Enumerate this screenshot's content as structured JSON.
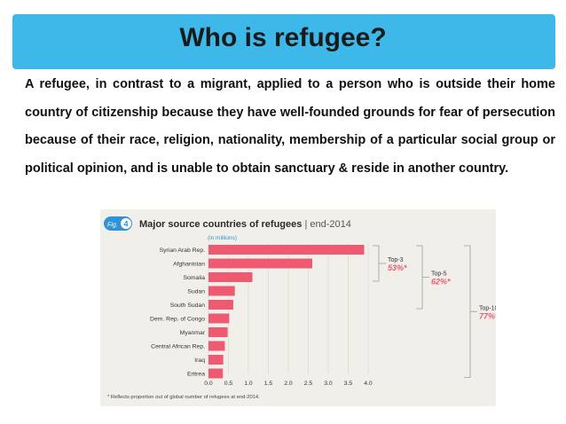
{
  "slide": {
    "title": "Who is refugee?",
    "body": "A refugee, in contrast to a migrant, applied to a person who is outside their home country of citizenship because they have well-founded grounds for fear of persecution because of their race, religion, nationality, membership of a particular social group or political opinion, and is unable to obtain sanctuary & reside in another country.",
    "accent_color": "#3db8e8"
  },
  "figure": {
    "badge_prefix": "Fig.",
    "badge_number": "4",
    "title_bold": "Major source countries of refugees",
    "title_light": "| end-2014",
    "note": "* Reflects proportion out of global number of refugees at end-2014."
  },
  "chart_data": {
    "type": "bar",
    "orientation": "horizontal",
    "unit_label": "(in millions)",
    "categories": [
      "Syrian Arab Rep.",
      "Afghanistan",
      "Somalia",
      "Sudan",
      "South Sudan",
      "Dem. Rep. of Congo",
      "Myanmar",
      "Central African Rep.",
      "Iraq",
      "Eritrea"
    ],
    "values": [
      3.9,
      2.6,
      1.1,
      0.66,
      0.62,
      0.52,
      0.48,
      0.41,
      0.37,
      0.36
    ],
    "xlim": [
      0,
      4.0
    ],
    "xticks": [
      "0.0",
      "0.5",
      "1.0",
      "1.5",
      "2.0",
      "2.5",
      "3.0",
      "3.5",
      "4.0"
    ],
    "bar_color": "#ee5a70",
    "grid": true,
    "annotations": [
      {
        "label": "Top-3",
        "value": "53%*",
        "rows": [
          0,
          2
        ]
      },
      {
        "label": "Top-5",
        "value": "62%*",
        "rows": [
          0,
          4
        ]
      },
      {
        "label": "Top-10",
        "value": "77%*",
        "rows": [
          0,
          9
        ]
      }
    ]
  }
}
